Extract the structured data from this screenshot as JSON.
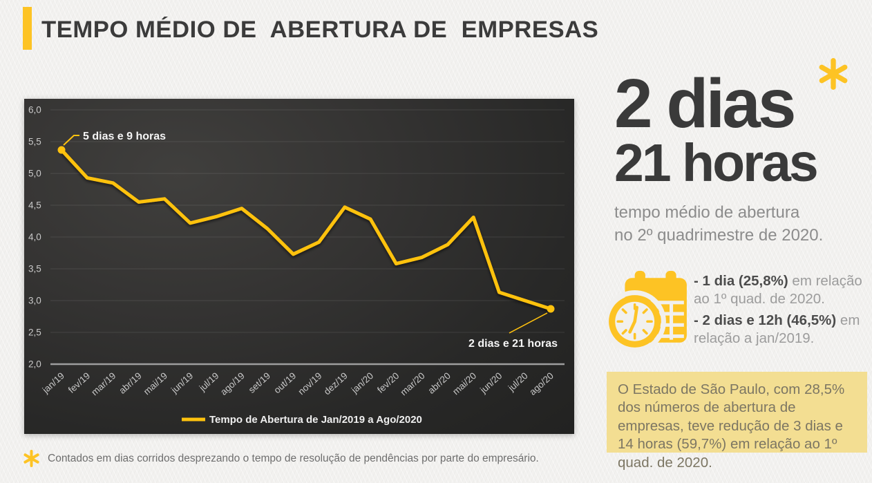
{
  "header": {
    "title": "TEMPO MÉDIO DE  ABERTURA DE  EMPRESAS"
  },
  "colors": {
    "accent_yellow": "#FDC324",
    "line_yellow": "#FFC20E",
    "headline_dark": "#3A3A3A",
    "note_box_bg": "#F3DE92",
    "panel_dark": "#2B2B2A"
  },
  "chart_data": {
    "type": "line",
    "title": "TEMPO MÉDIO DE ABERTURA DE EMPRESAS",
    "categories": [
      "jan/19",
      "fev/19",
      "mar/19",
      "abr/19",
      "mai/19",
      "jun/19",
      "jul/19",
      "ago/19",
      "set/19",
      "out/19",
      "nov/19",
      "dez/19",
      "jan/20",
      "fev/20",
      "mar/20",
      "abr/20",
      "mai/20",
      "jun/20",
      "jul/20",
      "ago/20"
    ],
    "series": [
      {
        "name": "Tempo de Abertura de Jan/2019 a Ago/2020",
        "values": [
          5.37,
          4.93,
          4.85,
          4.55,
          4.6,
          4.22,
          4.32,
          4.45,
          4.13,
          3.73,
          3.92,
          4.47,
          4.28,
          3.58,
          3.68,
          3.88,
          4.31,
          3.13,
          3.0,
          2.87
        ]
      }
    ],
    "xlabel": "",
    "ylabel": "",
    "ylim": [
      2.0,
      6.0
    ],
    "ytick_step": 0.5,
    "decimal_separator": ",",
    "grid": true,
    "legend_position": "bottom",
    "line_color": "#FFC20E",
    "annotations": [
      {
        "text": "5 dias e 9 horas",
        "point_index": 0
      },
      {
        "text": "2 dias e 21 horas",
        "point_index": 19
      }
    ]
  },
  "headline": {
    "value_line1": "2 dias",
    "value_line2": "21 horas",
    "subtitle_line1": "tempo médio de abertura",
    "subtitle_line2": "no 2º quadrimestre de 2020."
  },
  "stats": {
    "items": [
      {
        "bold": "- 1 dia (25,8%)",
        "rest": " em relação ao 1º quad. de 2020."
      },
      {
        "bold": "- 2 dias e 12h (46,5%)",
        "rest": " em relação a jan/2019."
      }
    ]
  },
  "note_box": {
    "text": "O Estado de São Paulo, com 28,5% dos números de abertura de empresas, teve redução de 3 dias e 14 horas (59,7%) em relação ao 1º quad. de 2020."
  },
  "footnote": {
    "text": "Contados em dias corridos desprezando o tempo de resolução de pendências por parte do empresário."
  }
}
